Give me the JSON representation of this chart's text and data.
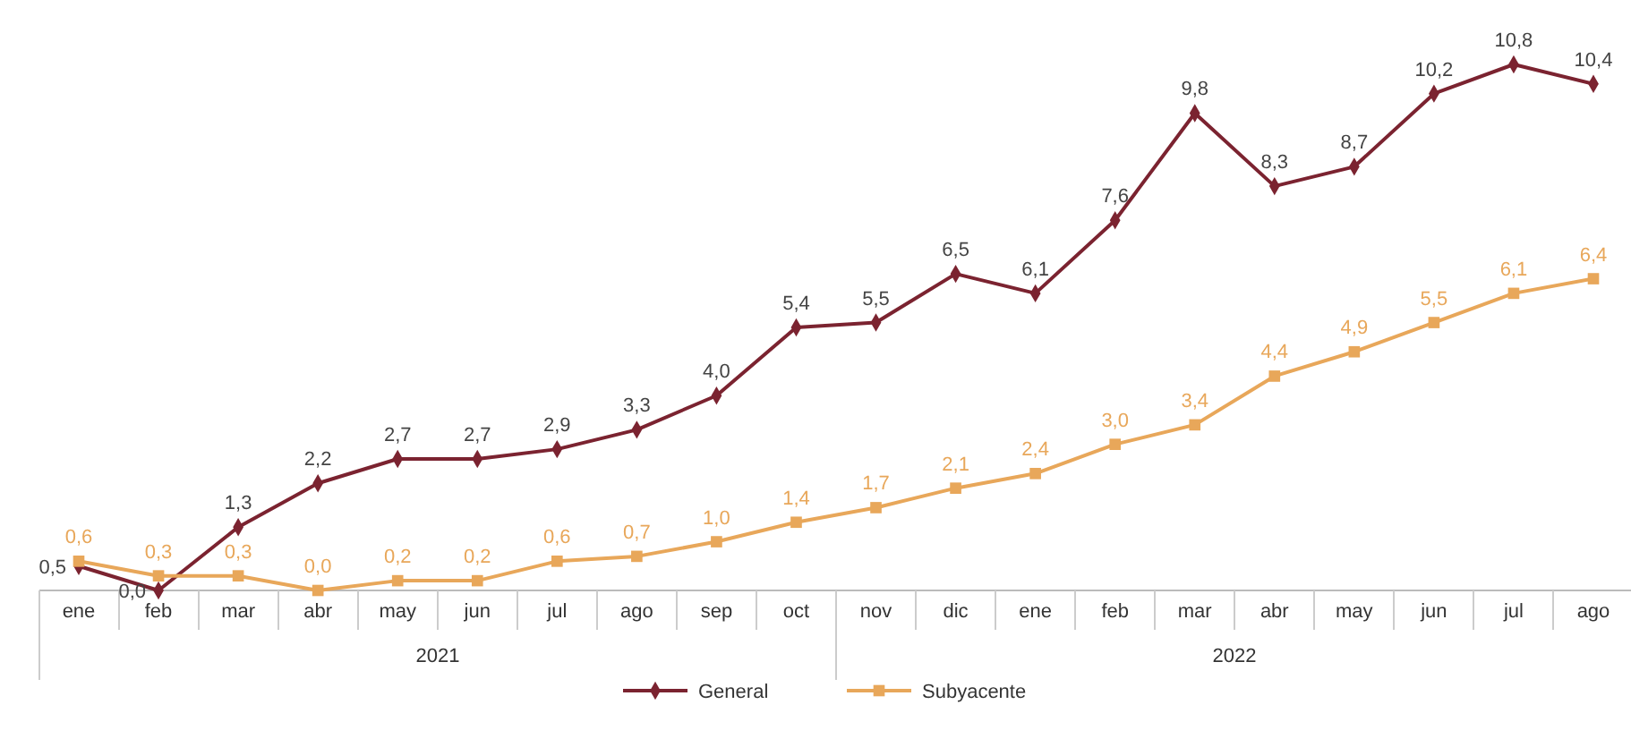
{
  "chart_data": {
    "type": "line",
    "categories": [
      "ene",
      "feb",
      "mar",
      "abr",
      "may",
      "jun",
      "jul",
      "ago",
      "sep",
      "oct",
      "nov",
      "dic",
      "ene",
      "feb",
      "mar",
      "abr",
      "may",
      "jun",
      "jul",
      "ago"
    ],
    "series": [
      {
        "name": "General",
        "color": "#7b2330",
        "marker": "diamond",
        "values": [
          0.5,
          0.0,
          1.3,
          2.2,
          2.7,
          2.7,
          2.9,
          3.3,
          4.0,
          5.4,
          5.5,
          6.5,
          6.1,
          7.6,
          9.8,
          8.3,
          8.7,
          10.2,
          10.8,
          10.4
        ],
        "value_labels": [
          "0,5",
          "0,0",
          "1,3",
          "2,2",
          "2,7",
          "2,7",
          "2,9",
          "3,3",
          "4,0",
          "5,4",
          "5,5",
          "6,5",
          "6,1",
          "7,6",
          "9,8",
          "8,3",
          "8,7",
          "10,2",
          "10,8",
          "10,4"
        ]
      },
      {
        "name": "Subyacente",
        "color": "#e8a75a",
        "marker": "square",
        "values": [
          0.6,
          0.3,
          0.3,
          0.0,
          0.2,
          0.2,
          0.6,
          0.7,
          1.0,
          1.4,
          1.7,
          2.1,
          2.4,
          3.0,
          3.4,
          4.4,
          4.9,
          5.5,
          6.1,
          6.4
        ],
        "value_labels": [
          "0,6",
          "0,3",
          "0,3",
          "0,0",
          "0,2",
          "0,2",
          "0,6",
          "0,7",
          "1,0",
          "1,4",
          "1,7",
          "2,1",
          "2,4",
          "3,0",
          "3,4",
          "4,4",
          "4,9",
          "5,5",
          "6,1",
          "6,4"
        ]
      }
    ],
    "annotations": [
      "2021",
      "2022"
    ],
    "legend": "bottom",
    "grid": false
  }
}
